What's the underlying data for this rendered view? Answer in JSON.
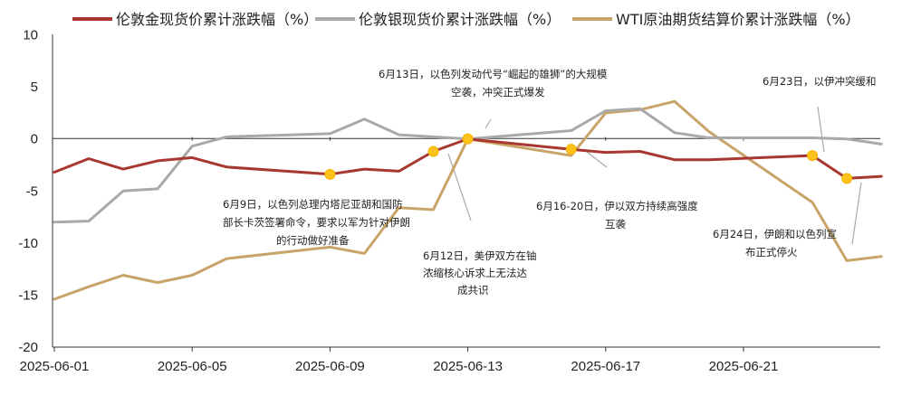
{
  "chart_data": {
    "type": "line",
    "title": "",
    "xlabel": "",
    "ylabel": "",
    "ylim": [
      -20,
      10
    ],
    "yticks": [
      10,
      5,
      0,
      -5,
      -10,
      -15,
      -20
    ],
    "x_tick_labels": [
      "2025-06-01",
      "2025-06-05",
      "2025-06-09",
      "2025-06-13",
      "2025-06-17",
      "2025-06-21"
    ],
    "dates": [
      "2025-06-01",
      "2025-06-02",
      "2025-06-03",
      "2025-06-04",
      "2025-06-05",
      "2025-06-06",
      "2025-06-07",
      "2025-06-08",
      "2025-06-09",
      "2025-06-10",
      "2025-06-11",
      "2025-06-12",
      "2025-06-13",
      "2025-06-14",
      "2025-06-15",
      "2025-06-16",
      "2025-06-17",
      "2025-06-18",
      "2025-06-19",
      "2025-06-20",
      "2025-06-21",
      "2025-06-22",
      "2025-06-23",
      "2025-06-24",
      "2025-06-25"
    ],
    "legend_position": "top",
    "series": [
      {
        "name": "伦敦金现货价累计涨跌幅（%）",
        "color": "#a8382f",
        "values": [
          -3.2,
          -1.9,
          -2.9,
          -2.1,
          -1.8,
          -2.7,
          null,
          null,
          -3.4,
          -2.9,
          -3.1,
          -1.2,
          0.0,
          null,
          null,
          -1.0,
          -1.3,
          -1.2,
          -2.0,
          -2.0,
          null,
          null,
          -1.6,
          -3.8,
          -3.6
        ]
      },
      {
        "name": "伦敦银现货价累计涨跌幅（%）",
        "color": "#a9a9a9",
        "values": [
          -8.0,
          -7.9,
          -5.0,
          -4.8,
          -0.7,
          0.2,
          null,
          null,
          0.5,
          1.9,
          0.4,
          0.2,
          0.0,
          null,
          null,
          0.8,
          2.7,
          2.9,
          0.6,
          0.1,
          null,
          null,
          0.1,
          0.0,
          -0.5
        ]
      },
      {
        "name": "WTI原油期货结算价累计涨跌幅（%）",
        "color": "#c9a469",
        "values": [
          -15.4,
          -14.2,
          -13.1,
          -13.8,
          -13.1,
          -11.5,
          null,
          null,
          -10.4,
          -11.0,
          -6.6,
          -6.8,
          0.0,
          null,
          null,
          -1.6,
          2.5,
          2.8,
          3.6,
          0.7,
          null,
          null,
          -6.1,
          -11.7,
          -11.3
        ]
      }
    ],
    "markers": [
      {
        "date": "2025-06-09",
        "value": -3.4
      },
      {
        "date": "2025-06-12",
        "value": -1.2
      },
      {
        "date": "2025-06-13",
        "value": 0.0
      },
      {
        "date": "2025-06-16",
        "value": -1.0
      },
      {
        "date": "2025-06-23",
        "value": -1.6
      },
      {
        "date": "2025-06-24",
        "value": -3.8
      }
    ],
    "annotations": [
      {
        "lines": [
          "6月13日，以色列发动代号“崛起的雄狮”的大规模",
          "空袭，冲突正式爆发"
        ],
        "anchor": "top"
      },
      {
        "lines": [
          "6月23日，以伊冲突缓和"
        ],
        "anchor": "top-right"
      },
      {
        "lines": [
          "6月9日，以色列总理内塔尼亚胡和国防",
          "部长卡茨签署命令，要求以军为针对伊朗",
          "的行动做好准备"
        ],
        "anchor": "left"
      },
      {
        "lines": [
          "6月12日，美伊双方在铀",
          "浓缩核心诉求上无法达",
          "成共识"
        ],
        "anchor": "bottom-center"
      },
      {
        "lines": [
          "6月16-20日，伊以双方持续高强度",
          "互袭"
        ],
        "anchor": "center-right"
      },
      {
        "lines": [
          "6月24日，伊朗和以色列宣",
          "布正式停火"
        ],
        "anchor": "right"
      }
    ]
  }
}
